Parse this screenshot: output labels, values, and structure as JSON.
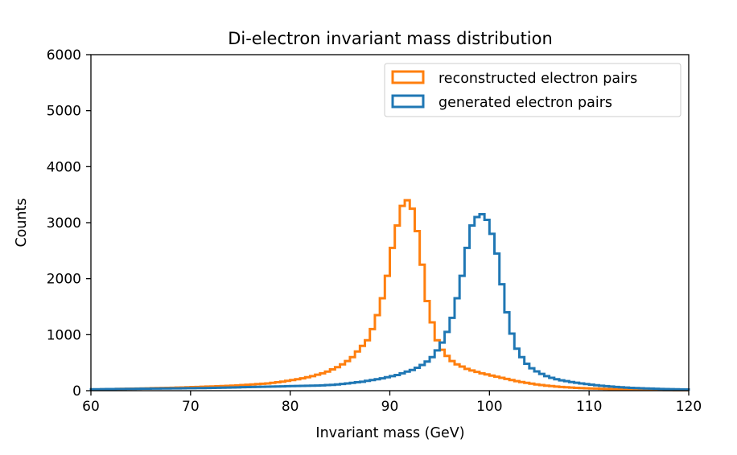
{
  "chart_data": {
    "type": "step-histogram",
    "title": "Di-electron invariant mass distribution",
    "xlabel": "Invariant mass (GeV)",
    "ylabel": "Counts",
    "xlim": [
      60,
      120
    ],
    "ylim": [
      0,
      6000
    ],
    "xticks": [
      60,
      70,
      80,
      90,
      100,
      110,
      120
    ],
    "yticks": [
      0,
      1000,
      2000,
      3000,
      4000,
      5000,
      6000
    ],
    "bin_start": 60,
    "bin_width": 0.5,
    "legend_position": "top-right",
    "grid": false,
    "series": [
      {
        "name": "reconstructed electron pairs",
        "color": "#ff7f0e",
        "values": [
          20,
          22,
          24,
          26,
          28,
          30,
          32,
          34,
          36,
          38,
          40,
          42,
          44,
          46,
          48,
          50,
          52,
          55,
          58,
          61,
          64,
          67,
          70,
          73,
          76,
          79,
          82,
          86,
          90,
          95,
          100,
          106,
          112,
          118,
          124,
          130,
          140,
          150,
          162,
          175,
          190,
          205,
          220,
          240,
          260,
          285,
          310,
          340,
          380,
          420,
          470,
          530,
          600,
          700,
          800,
          900,
          1100,
          1350,
          1650,
          2050,
          2550,
          2950,
          3300,
          3400,
          3250,
          2850,
          2250,
          1600,
          1220,
          900,
          730,
          620,
          530,
          470,
          430,
          390,
          360,
          335,
          310,
          290,
          270,
          250,
          230,
          210,
          190,
          170,
          155,
          140,
          125,
          112,
          100,
          90,
          82,
          74,
          67,
          61,
          56,
          51,
          47,
          43,
          40,
          37,
          34,
          31,
          28,
          26,
          24,
          22,
          20,
          19,
          18,
          17,
          16,
          15,
          14,
          13,
          12,
          11,
          10,
          10
        ]
      },
      {
        "name": "generated electron pairs",
        "color": "#1f77b4",
        "values": [
          25,
          26,
          27,
          28,
          29,
          30,
          31,
          32,
          33,
          34,
          35,
          36,
          37,
          38,
          39,
          40,
          41,
          42,
          43,
          44,
          45,
          46,
          47,
          48,
          50,
          52,
          54,
          56,
          58,
          60,
          62,
          64,
          66,
          68,
          70,
          72,
          74,
          76,
          78,
          80,
          82,
          84,
          86,
          88,
          90,
          92,
          95,
          100,
          105,
          112,
          120,
          130,
          140,
          150,
          160,
          175,
          190,
          205,
          220,
          240,
          260,
          280,
          310,
          340,
          370,
          410,
          460,
          520,
          600,
          720,
          860,
          1050,
          1300,
          1650,
          2050,
          2550,
          2950,
          3100,
          3150,
          3050,
          2800,
          2450,
          1900,
          1400,
          1020,
          750,
          600,
          480,
          400,
          345,
          300,
          260,
          230,
          205,
          185,
          170,
          155,
          142,
          130,
          118,
          107,
          97,
          88,
          80,
          73,
          67,
          61,
          56,
          51,
          47,
          43,
          40,
          37,
          34,
          31,
          29,
          27,
          25,
          23,
          21
        ]
      }
    ]
  }
}
